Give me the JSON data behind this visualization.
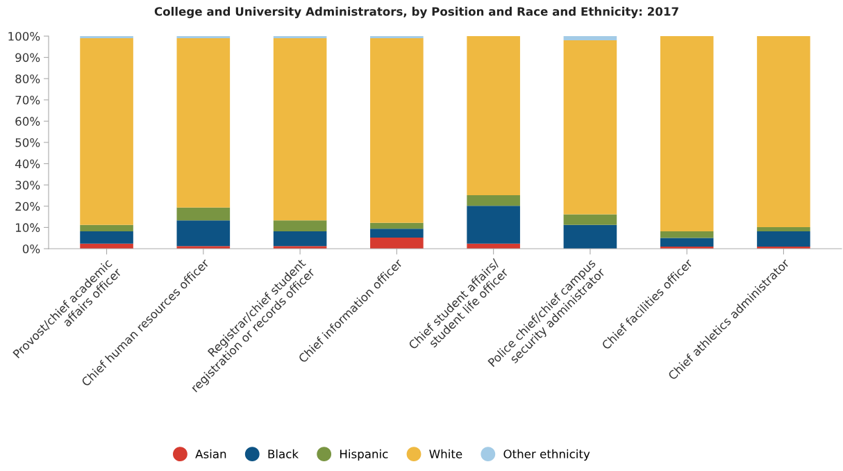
{
  "chart_data": {
    "type": "bar",
    "stacked": true,
    "title": "College and University Administrators, by Position and Race and Ethnicity: 2017",
    "categories": [
      "Provost/chief academic\naffairs officer",
      "Chief human resources officer",
      "Registrar/chief student\nregistration or records officer",
      "Chief information officer",
      "Chief student affairs/\nstudent life officer",
      "Police chief/chief campus\nsecurity administrator",
      "Chief facilities officer",
      "Chief athletics administrator"
    ],
    "series": [
      {
        "name": "Asian",
        "color": "#d63b30",
        "values": [
          2.4,
          1.2,
          1.2,
          5.2,
          2.4,
          0,
          1,
          1
        ]
      },
      {
        "name": "Black",
        "color": "#0d5384",
        "values": [
          5.8,
          12.1,
          7,
          4.2,
          17.8,
          11.2,
          4.1,
          7.2
        ]
      },
      {
        "name": "Hispanic",
        "color": "#799542",
        "values": [
          3,
          6.1,
          5.1,
          2.8,
          5,
          5,
          3.1,
          1.9
        ]
      },
      {
        "name": "White",
        "color": "#efb941",
        "values": [
          87.8,
          79.6,
          85.7,
          86.8,
          74.8,
          81.8,
          91.8,
          89.9
        ]
      },
      {
        "name": "Other ethnicity",
        "color": "#a3cbe6",
        "values": [
          1,
          1,
          1,
          1,
          0,
          2,
          0,
          0
        ]
      }
    ],
    "ylim": [
      0,
      100
    ],
    "yticks": [
      {
        "value": 0,
        "label": "0%"
      },
      {
        "value": 10,
        "label": "10%"
      },
      {
        "value": 20,
        "label": "20%"
      },
      {
        "value": 30,
        "label": "30%"
      },
      {
        "value": 40,
        "label": "40%"
      },
      {
        "value": 50,
        "label": "50%"
      },
      {
        "value": 60,
        "label": "60%"
      },
      {
        "value": 70,
        "label": "70%"
      },
      {
        "value": 80,
        "label": "80%"
      },
      {
        "value": 90,
        "label": "90%"
      },
      {
        "value": 100,
        "label": "100%"
      }
    ],
    "grid": false,
    "legend": "bottom",
    "marker": "circle"
  }
}
